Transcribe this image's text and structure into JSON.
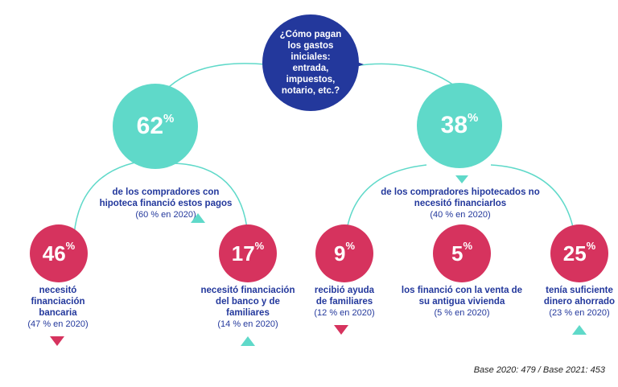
{
  "question": "¿Cómo pagan los gastos iniciales: entrada, impuestos, notario, etc.?",
  "left_branch": {
    "value": "62",
    "unit": "%",
    "text": "de los compradores con hipoteca financió estos pagos",
    "prev": "(60 % en 2020)",
    "trend": "up",
    "children": [
      {
        "value": "46",
        "unit": "%",
        "text": "necesitó financiación bancaria",
        "prev": "(47 % en 2020)",
        "trend": "down"
      },
      {
        "value": "17",
        "unit": "%",
        "text": "necesitó financiación del banco y de familiares",
        "prev": "(14 % en 2020)",
        "trend": "up"
      }
    ]
  },
  "right_branch": {
    "value": "38",
    "unit": "%",
    "text": "de los compradores hipotecados no necesitó financiarlos",
    "prev": "(40 % en 2020)",
    "children": [
      {
        "value": "9",
        "unit": "%",
        "text": "recibió ayuda de familiares",
        "prev": "(12 % en 2020)",
        "trend": "down"
      },
      {
        "value": "5",
        "unit": "%",
        "text": "los financió con la venta de su antigua vivienda",
        "prev": "(5 % en 2020)",
        "trend": "none"
      },
      {
        "value": "25",
        "unit": "%",
        "text": "tenía suficiente dinero ahorrado",
        "prev": "(23 % en 2020)",
        "trend": "up"
      }
    ]
  },
  "footnote": "Base 2020: 479 / Base 2021: 453",
  "colors": {
    "navy": "#23389c",
    "teal": "#5fd9c9",
    "pink": "#d6335e"
  }
}
